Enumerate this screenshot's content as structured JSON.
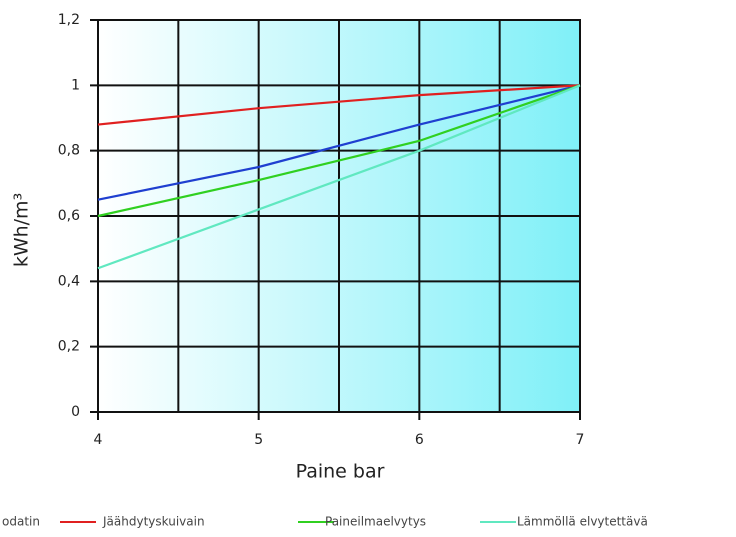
{
  "chart_data": {
    "type": "line",
    "x_label": "Paine bar",
    "y_label": "kWh/m³",
    "x": [
      4,
      5,
      6,
      7
    ],
    "series": [
      {
        "name": "odatin",
        "color": "#1f3fd0",
        "values": [
          0.65,
          0.75,
          0.88,
          1.0
        ]
      },
      {
        "name": "Jäähdytyskuivain",
        "color": "#e02020",
        "values": [
          0.88,
          0.93,
          0.97,
          1.0
        ]
      },
      {
        "name": "Paineilmaelvytys",
        "color": "#30d020",
        "values": [
          0.6,
          0.71,
          0.83,
          1.0
        ]
      },
      {
        "name": "Lämmöllä elvytettävä",
        "color": "#60e8c0",
        "values": [
          0.44,
          0.62,
          0.8,
          1.0
        ]
      }
    ],
    "xlim": [
      4,
      7
    ],
    "xticks": [
      4,
      5,
      6,
      7
    ],
    "ylim": [
      0,
      1.2
    ],
    "yticks": [
      0,
      {
        "value": 0.2,
        "label": "0,2"
      },
      {
        "value": 0.4,
        "label": "0,4"
      },
      {
        "value": 0.6,
        "label": "0,6"
      },
      {
        "value": 0.8,
        "label": "0,8"
      },
      1,
      {
        "value": 1.2,
        "label": "1,2"
      }
    ],
    "grid": true
  }
}
